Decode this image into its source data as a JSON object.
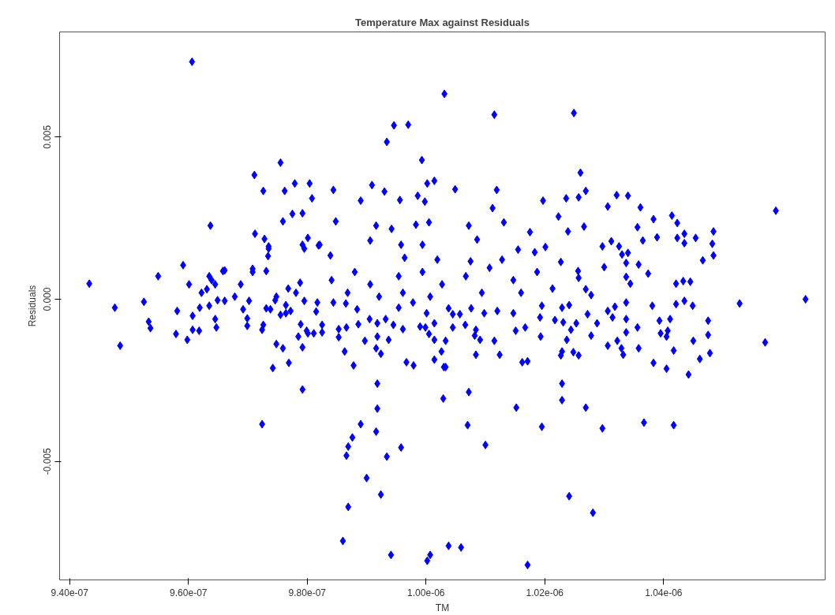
{
  "chart_data": {
    "type": "scatter",
    "title": "Temperature Max against Residuals",
    "xlabel": "TM",
    "ylabel": "Residuals",
    "xlim": [
      9.383e-07,
      1.0672e-06
    ],
    "ylim": [
      -0.00865,
      0.00824
    ],
    "xticks": [
      {
        "value": 9.4e-07,
        "label": "9.40e-07"
      },
      {
        "value": 9.6e-07,
        "label": "9.60e-07"
      },
      {
        "value": 9.8e-07,
        "label": "9.80e-07"
      },
      {
        "value": 1e-06,
        "label": "1.00e-06"
      },
      {
        "value": 1.02e-06,
        "label": "1.02e-06"
      },
      {
        "value": 1.04e-06,
        "label": "1.04e-06"
      }
    ],
    "yticks": [
      {
        "value": -0.005,
        "label": "-0.005"
      },
      {
        "value": 0,
        "label": "0.000"
      },
      {
        "value": 0.005,
        "label": "0.005"
      }
    ],
    "grid": false,
    "marker": "diamond",
    "color": "#0000ff",
    "x": [
      9.433e-07,
      9.476e-07,
      9.485e-07,
      9.525e-07,
      9.533e-07,
      9.536e-07,
      9.549e-07,
      9.581e-07,
      9.591e-07,
      9.598e-07,
      9.607e-07,
      9.607e-07,
      9.601e-07,
      9.622e-07,
      9.631e-07,
      9.637e-07,
      9.639e-07,
      9.645e-07,
      9.649e-07,
      9.661e-07,
      9.606e-07,
      9.711e-07,
      9.726e-07,
      9.728e-07,
      9.699e-07,
      9.708e-07,
      9.735e-07,
      9.724e-07,
      9.742e-07,
      9.755e-07,
      9.759e-07,
      9.762e-07,
      9.769e-07,
      9.779e-07,
      9.775e-07,
      9.792e-07,
      9.788e-07,
      9.801e-07,
      9.808e-07,
      9.688e-07,
      9.678e-07,
      9.748e-07,
      9.764e-07,
      9.781e-07,
      9.768e-07,
      9.738e-07,
      9.702e-07,
      9.89e-07,
      9.916e-07,
      9.876e-07,
      9.869e-07,
      9.866e-07,
      9.958e-07,
      9.934e-07,
      9.9e-07,
      9.924e-07,
      9.869e-07,
      9.86e-07,
      9.941e-07,
      1.0007e-06,
      1.0002e-06,
      9.918e-07,
      9.918e-07,
      9.792e-07,
      9.878e-07,
      1.0029e-06,
      1.0241e-06,
      1.0281e-06,
      1.0038e-06,
      1.0059e-06,
      1.0171e-06,
      1.007e-06,
      1.01e-06,
      1.0152e-06,
      1.0195e-06,
      1.0269e-06,
      1.0297e-06,
      1.0367e-06,
      1.0417e-06,
      1.0229e-06,
      1.0229e-06,
      1.0072e-06,
      1.0571e-06,
      1.0528e-06,
      1.0639e-06,
      1.0031e-06,
      1.0115e-06,
      1.0249e-06,
      9.946e-07,
      9.97e-07,
      9.934e-07,
      9.993e-07,
      1.0002e-06,
      1.0014e-06,
      1.0049e-06,
      1.0119e-06,
      9.844e-07,
      9.909e-07,
      9.93e-07,
      9.89e-07,
      9.956e-07,
      9.986e-07,
      9.998e-07,
      1.0112e-06,
      1.0197e-06,
      1.0236e-06,
      9.848e-07,
      9.916e-07,
      9.942e-07,
      9.983e-07,
      1.0005e-06,
      1.0072e-06,
      1.0131e-06,
      1.0223e-06,
      9.821e-07,
      9.906e-07,
      9.958e-07,
      9.994e-07,
      1.0086e-06,
      1.0175e-06,
      1.0239e-06,
      1.0155e-06,
      1.0201e-06,
      9.839e-07,
      9.964e-07,
      1.0019e-06,
      1.0075e-06,
      1.0128e-06,
      1.0183e-06,
      1.0227e-06,
      9.804e-07,
      9.792e-07,
      9.801e-07,
      9.712e-07,
      9.735e-07,
      9.734e-07,
      9.795e-07,
      9.658e-07,
      9.635e-07,
      9.708e-07,
      9.731e-07,
      9.819e-07,
      1.0589e-06,
      1.026e-06,
      1.0269e-06,
      1.0257e-06,
      1.0321e-06,
      1.034e-06,
      1.0306e-06,
      1.0361e-06,
      1.0383e-06,
      1.0414e-06,
      1.0423e-06,
      1.0356e-06,
      1.0266e-06,
      1.0365e-06,
      1.0389e-06,
      1.0423e-06,
      1.0435e-06,
      1.0435e-06,
      1.0454e-06,
      1.0484e-06,
      1.0482e-06,
      1.0484e-06,
      1.0466e-06,
      1.0297e-06,
      1.0312e-06,
      1.0325e-06,
      1.033e-06,
      1.034e-06,
      1.0337e-06,
      1.0358e-06,
      1.03e-06,
      1.0374e-06,
      1.0337e-06,
      1.0344e-06,
      1.0421e-06,
      1.0433e-06,
      1.0445e-06,
      1.0256e-06,
      1.0257e-06,
      1.0269e-06,
      1.0278e-06,
      1.0038e-06,
      1.0045e-06,
      1.0057e-06,
      1.0076e-06,
      1.0045e-06,
      1.0066e-06,
      1.0084e-06,
      1.0033e-06,
      1.0082e-06,
      1.0091e-06,
      1.0115e-06,
      1.0084e-06,
      1.0124e-06,
      1.0033e-06,
      1.0162e-06,
      1.0171e-06,
      1.0098e-06,
      1.012e-06,
      1.0147e-06,
      1.0151e-06,
      1.0167e-06,
      1.0192e-06,
      1.0195e-06,
      1.0193e-06,
      1.0217e-06,
      1.0231e-06,
      1.0244e-06,
      1.0253e-06,
      1.0241e-06,
      1.0229e-06,
      1.0272e-06,
      1.0288e-06,
      1.0278e-06,
      1.0306e-06,
      1.0314e-06,
      1.0318e-06,
      1.0337e-06,
      1.0337e-06,
      1.0337e-06,
      1.0356e-06,
      1.0306e-06,
      1.0322e-06,
      1.0329e-06,
      1.0358e-06,
      1.0237e-06,
      1.0229e-06,
      1.0248e-06,
      1.0257e-06,
      1.0227e-06,
      1.0332e-06,
      1.0381e-06,
      1.0393e-06,
      1.0411e-06,
      1.0421e-06,
      1.0435e-06,
      1.0449e-06,
      1.0395e-06,
      1.0407e-06,
      1.0405e-06,
      1.0417e-06,
      1.0383e-06,
      1.0405e-06,
      1.045e-06,
      1.0475e-06,
      1.0475e-06,
      1.0478e-06,
      1.0461e-06,
      1.0442e-06,
      9.619e-07,
      9.635e-07,
      9.661e-07,
      9.645e-07,
      9.647e-07,
      9.579e-07,
      9.618e-07,
      9.692e-07,
      9.699e-07,
      9.731e-07,
      9.726e-07,
      9.724e-07,
      9.748e-07,
      9.759e-07,
      9.746e-07,
      9.755e-07,
      9.785e-07,
      9.789e-07,
      9.799e-07,
      9.811e-07,
      9.792e-07,
      9.825e-07,
      9.825e-07,
      9.815e-07,
      9.772e-07,
      9.853e-07,
      9.853e-07,
      9.866e-07,
      9.863e-07,
      9.897e-07,
      9.916e-07,
      9.924e-07,
      9.918e-07,
      9.937e-07,
      9.884e-07,
      9.886e-07,
      9.905e-07,
      9.918e-07,
      9.932e-07,
      9.945e-07,
      9.961e-07,
      9.967e-07,
      9.979e-07,
      9.99e-07,
      9.999e-07,
      1.0005e-06,
      1.0014e-06,
      1.0014e-06,
      1.0026e-06,
      1.003e-06,
      1.0014e-06,
      1.0001e-06,
      9.954e-07,
      9.978e-07,
      9.865e-07,
      9.844e-07,
      9.817e-07,
      9.795e-07,
      9.764e-07,
      9.841e-07,
      9.88e-07,
      9.906e-07,
      9.954e-07,
      9.994e-07,
      1.0027e-06,
      1.0067e-06,
      1.0107e-06,
      1.0147e-06,
      1.0187e-06,
      1.0213e-06,
      9.868e-07,
      9.961e-07,
      1.0094e-06,
      1.016e-06,
      1.0007e-06,
      9.921e-07
    ],
    "values": [
      0.00048,
      -0.00026,
      -0.00143,
      -8e-05,
      -0.00069,
      -0.00089,
      0.00071,
      -0.00036,
      0.00105,
      -0.00125,
      -0.00051,
      -0.00094,
      0.00046,
      0.0002,
      0.00031,
      0.00227,
      0.00059,
      0.00046,
      -3e-05,
      0.00089,
      0.00732,
      0.00383,
      0.00334,
      0.00186,
      -0.00082,
      0.00084,
      0.00156,
      -0.00385,
      -0.00212,
      0.00421,
      0.0024,
      0.00334,
      -0.00196,
      0.00357,
      0.00263,
      0.00168,
      0.00051,
      -0.00105,
      0.00311,
      0.00046,
      8e-05,
      8e-05,
      -0.00043,
      0.0002,
      0.00033,
      -0.00031,
      -5e-05,
      -0.00385,
      -0.00408,
      -0.00426,
      -0.00454,
      -0.00482,
      -0.00457,
      -0.00485,
      -0.00551,
      -0.00602,
      -0.0064,
      -0.00745,
      -0.00788,
      -0.00788,
      -0.00806,
      -0.0026,
      -0.00337,
      -0.00278,
      -0.00204,
      -0.00306,
      -0.00607,
      -0.00658,
      -0.0076,
      -0.00765,
      -0.00819,
      -0.00388,
      -0.00449,
      -0.00334,
      -0.00393,
      -0.00334,
      -0.00398,
      -0.0038,
      -0.00388,
      -0.0026,
      -0.00311,
      -0.00286,
      -0.00133,
      -0.00013,
      0.0,
      0.00633,
      0.00569,
      0.00574,
      0.00536,
      0.00538,
      0.00485,
      0.00429,
      0.00357,
      0.00365,
      0.00339,
      0.00337,
      0.00337,
      0.00352,
      0.00332,
      0.00304,
      0.00306,
      0.00319,
      0.00301,
      0.00281,
      0.00304,
      0.00311,
      0.0024,
      0.00227,
      0.00217,
      0.0023,
      0.00237,
      0.00227,
      0.00237,
      0.00255,
      0.00168,
      0.00181,
      0.00168,
      0.00168,
      0.00184,
      0.00207,
      0.00209,
      0.00153,
      0.00161,
      0.00135,
      0.00128,
      0.00122,
      0.00117,
      0.00122,
      0.00145,
      0.00115,
      0.00357,
      0.00265,
      0.00189,
      0.00202,
      0.00163,
      0.00133,
      0.00156,
      0.00087,
      0.00071,
      0.00094,
      0.00087,
      0.00166,
      0.00273,
      0.0039,
      0.00334,
      0.00314,
      0.00321,
      0.00319,
      0.00286,
      0.00283,
      0.00247,
      0.00258,
      0.00235,
      0.00222,
      0.00224,
      0.00181,
      0.00191,
      0.00189,
      0.00202,
      0.00173,
      0.00189,
      0.00209,
      0.00171,
      0.00135,
      0.0012,
      0.00163,
      0.00179,
      0.00163,
      0.00138,
      0.00143,
      0.00112,
      0.00107,
      0.00099,
      0.00079,
      0.00069,
      0.00048,
      0.00048,
      0.00056,
      0.00054,
      0.00087,
      0.00066,
      0.00031,
      0.00013,
      -0.00028,
      -0.00046,
      -0.00046,
      -0.00028,
      -0.00087,
      -0.00079,
      -0.00094,
      -0.00128,
      -0.00112,
      -0.00125,
      -0.00128,
      -0.00171,
      -0.00171,
      -0.00209,
      -0.00194,
      -0.00191,
      -0.00043,
      -0.00036,
      -0.00043,
      -0.00097,
      -0.00087,
      -0.00056,
      -0.0002,
      -0.00115,
      -0.00064,
      -0.00071,
      -0.00094,
      -0.00074,
      -0.00018,
      -0.00026,
      -0.00046,
      -0.00074,
      -0.00112,
      -0.00036,
      -0.00056,
      -0.00023,
      -0.0001,
      -0.00061,
      -0.00102,
      -0.00087,
      -0.00143,
      -0.00128,
      -0.00151,
      -0.00151,
      -0.00125,
      -0.00161,
      -0.00163,
      -0.00173,
      -0.00173,
      -0.00171,
      -0.0002,
      -0.00066,
      -0.00061,
      -0.00015,
      -5e-05,
      -0.0002,
      -0.00105,
      -0.00097,
      -0.00115,
      -0.00158,
      -0.00196,
      -0.00214,
      -0.00128,
      -0.00066,
      -0.0011,
      -0.00166,
      -0.00184,
      -0.00232,
      -0.00026,
      -0.0002,
      -5e-05,
      -0.00061,
      -0.00087,
      -0.00107,
      -0.00097,
      -0.00031,
      -0.00059,
      -0.00028,
      -0.00079,
      -0.00094,
      -0.00138,
      -0.00151,
      -3e-05,
      -0.00048,
      -0.00115,
      -0.00077,
      -0.00097,
      -0.00105,
      -0.00148,
      -0.00079,
      -0.00102,
      -0.00038,
      -0.00036,
      -0.00092,
      -0.00117,
      -0.00087,
      -0.00161,
      -0.00128,
      -0.00151,
      -0.00168,
      -0.00115,
      -0.00125,
      -0.00031,
      -0.00077,
      -0.00061,
      -0.00074,
      -0.00061,
      -0.00079,
      -0.00092,
      -0.00194,
      -0.00204,
      -0.00084,
      -0.00087,
      -0.00107,
      -0.00125,
      -0.00186,
      -0.00161,
      -0.00209,
      -0.00074,
      -0.00043,
      -0.00026,
      -0.0001,
      -0.00013,
      -0.0001,
      -0.0001,
      -5e-05,
      -0.00018,
      0.00059,
      0.00084,
      0.00046,
      0.00071,
      0.00084,
      0.00046,
      0.00071,
      0.00097,
      0.00059,
      0.00084,
      0.00033,
      0.0002,
      0.0002,
      0.0002,
      0.0002,
      8e-05,
      8e-05
    ]
  }
}
